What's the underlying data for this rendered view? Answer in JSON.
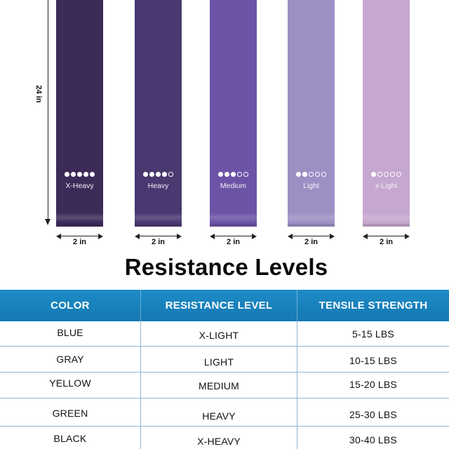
{
  "length_label": "24 in",
  "bands": [
    {
      "label": "X-Heavy",
      "level": 5,
      "color": "#3c2a58"
    },
    {
      "label": "Heavy",
      "level": 4,
      "color": "#4a3870"
    },
    {
      "label": "Medium",
      "level": 3,
      "color": "#6c53a6"
    },
    {
      "label": "Light",
      "level": 2,
      "color": "#9c8fc4"
    },
    {
      "label": "x-Light",
      "level": 1,
      "color": "#c6a7cf"
    }
  ],
  "width_label": "2 in",
  "heading": "Resistance Levels",
  "table": {
    "headers": [
      "COLOR",
      "RESISTANCE LEVEL",
      "TENSILE STRENGTH"
    ],
    "header_color": "#1a84bf",
    "rows": [
      {
        "color": "BLUE",
        "level": "X-LIGHT",
        "strength": "5-15 LBS"
      },
      {
        "color": "GRAY",
        "level": "LIGHT",
        "strength": "10-15 LBS"
      },
      {
        "color": "YELLOW",
        "level": "MEDIUM",
        "strength": "15-20 LBS"
      },
      {
        "color": "GREEN",
        "level": "HEAVY",
        "strength": "25-30 LBS"
      },
      {
        "color": "BLACK",
        "level": "X-HEAVY",
        "strength": "30-40 LBS"
      }
    ]
  }
}
